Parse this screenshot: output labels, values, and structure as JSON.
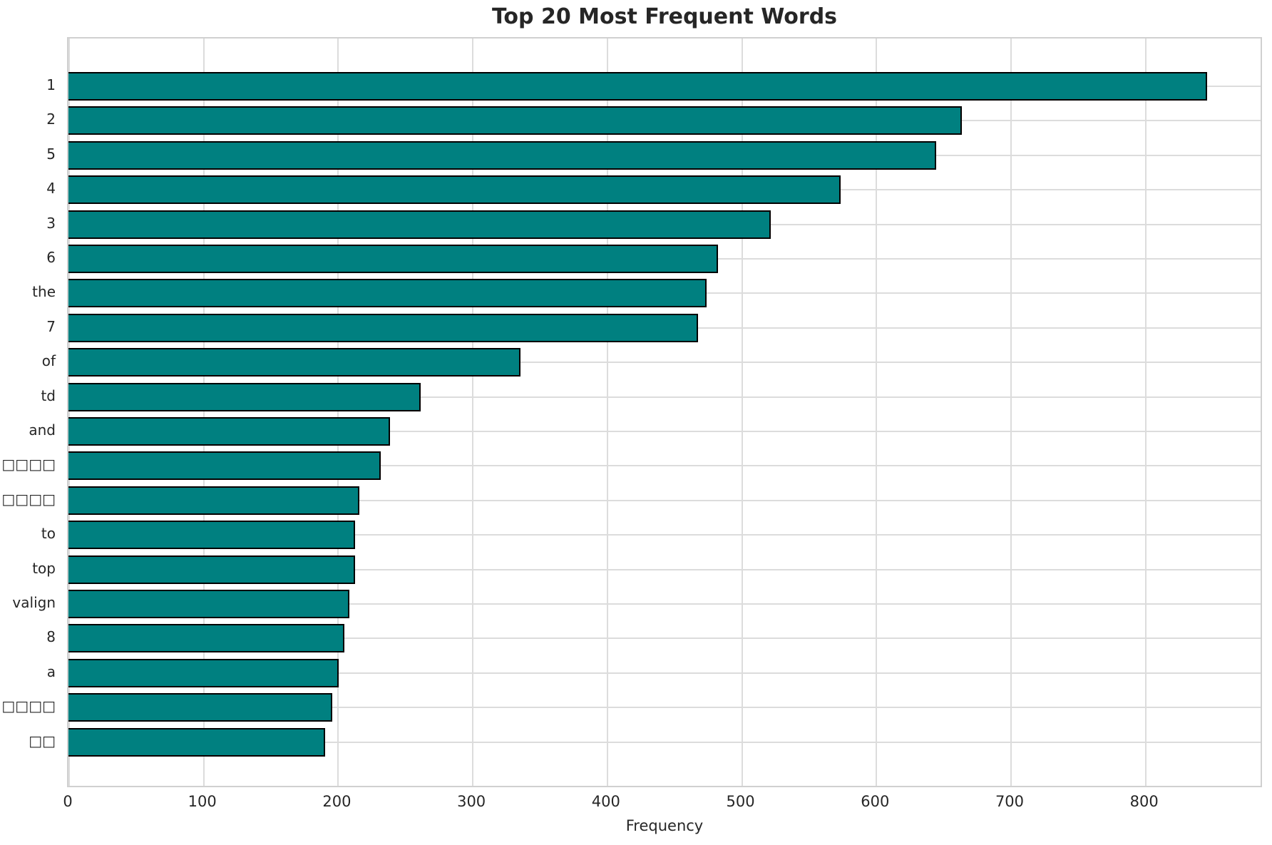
{
  "chart_data": {
    "type": "bar",
    "orientation": "horizontal",
    "title": "Top 20 Most Frequent Words",
    "xlabel": "Frequency",
    "ylabel": "",
    "categories": [
      "1",
      "2",
      "5",
      "4",
      "3",
      "6",
      "the",
      "7",
      "of",
      "td",
      "and",
      "□□□□",
      "□□□□",
      "to",
      "top",
      "valign",
      "8",
      "a",
      "□□□□",
      "□□"
    ],
    "values": [
      846,
      664,
      645,
      574,
      522,
      483,
      474,
      468,
      336,
      262,
      239,
      232,
      216,
      213,
      213,
      209,
      205,
      201,
      196,
      191
    ],
    "xlim": [
      0,
      886
    ],
    "xticks": [
      0,
      100,
      200,
      300,
      400,
      500,
      600,
      700,
      800
    ],
    "grid": true,
    "legend": false,
    "bar_color": "#008080",
    "bar_edge_color": "#000000",
    "grid_color": "#dcdcdc",
    "text_color": "#262626"
  }
}
